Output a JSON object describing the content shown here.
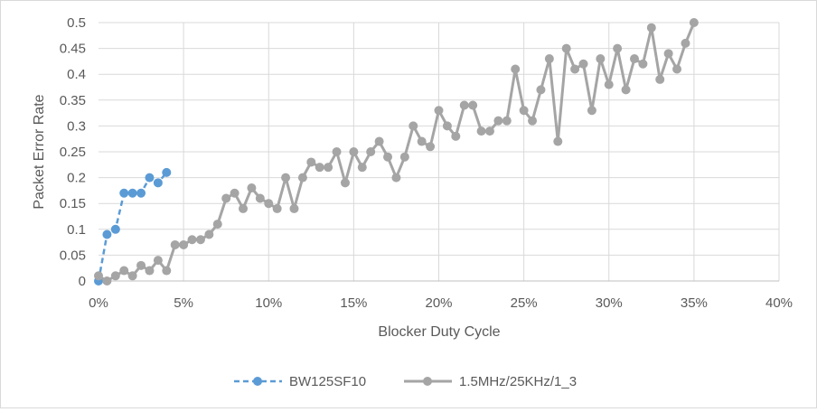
{
  "chart_data": {
    "type": "line",
    "title": "",
    "xlabel": "Blocker Duty Cycle",
    "ylabel": "Packet Error Rate",
    "xlim": [
      0,
      0.4
    ],
    "ylim": [
      0,
      0.5
    ],
    "x_ticks": [
      0,
      0.05,
      0.1,
      0.15,
      0.2,
      0.25,
      0.3,
      0.35,
      0.4
    ],
    "x_tick_labels": [
      "0%",
      "5%",
      "10%",
      "15%",
      "20%",
      "25%",
      "30%",
      "35%",
      "40%"
    ],
    "y_ticks": [
      0,
      0.05,
      0.1,
      0.15,
      0.2,
      0.25,
      0.3,
      0.35,
      0.4,
      0.45,
      0.5
    ],
    "y_tick_labels": [
      "0",
      "0.05",
      "0.1",
      "0.15",
      "0.2",
      "0.25",
      "0.3",
      "0.35",
      "0.4",
      "0.45",
      "0.5"
    ],
    "grid": true,
    "legend_position": "bottom",
    "series": [
      {
        "name": "BW125SF10",
        "color": "#5b9bd5",
        "line_style": "dashed",
        "x": [
          0,
          0.005,
          0.01,
          0.015,
          0.02,
          0.025,
          0.03,
          0.035,
          0.04
        ],
        "y": [
          0,
          0.09,
          0.1,
          0.17,
          0.17,
          0.17,
          0.2,
          0.19,
          0.21
        ]
      },
      {
        "name": "1.5MHz/25KHz/1_3",
        "color": "#a5a5a5",
        "line_style": "solid",
        "x": [
          0,
          0.005,
          0.01,
          0.015,
          0.02,
          0.025,
          0.03,
          0.035,
          0.04,
          0.045,
          0.05,
          0.055,
          0.06,
          0.065,
          0.07,
          0.075,
          0.08,
          0.085,
          0.09,
          0.095,
          0.1,
          0.105,
          0.11,
          0.115,
          0.12,
          0.125,
          0.13,
          0.135,
          0.14,
          0.145,
          0.15,
          0.155,
          0.16,
          0.165,
          0.17,
          0.175,
          0.18,
          0.185,
          0.19,
          0.195,
          0.2,
          0.205,
          0.21,
          0.215,
          0.22,
          0.225,
          0.23,
          0.235,
          0.24,
          0.245,
          0.25,
          0.255,
          0.26,
          0.265,
          0.27,
          0.275,
          0.28,
          0.285,
          0.29,
          0.295,
          0.3,
          0.305,
          0.31,
          0.315,
          0.32,
          0.325,
          0.33,
          0.335,
          0.34,
          0.345,
          0.35
        ],
        "y": [
          0.01,
          0,
          0.01,
          0.02,
          0.01,
          0.03,
          0.02,
          0.04,
          0.02,
          0.07,
          0.07,
          0.08,
          0.08,
          0.09,
          0.11,
          0.16,
          0.17,
          0.14,
          0.18,
          0.16,
          0.15,
          0.14,
          0.2,
          0.14,
          0.2,
          0.23,
          0.22,
          0.22,
          0.25,
          0.19,
          0.25,
          0.22,
          0.25,
          0.27,
          0.24,
          0.2,
          0.24,
          0.3,
          0.27,
          0.26,
          0.33,
          0.3,
          0.28,
          0.34,
          0.34,
          0.29,
          0.29,
          0.31,
          0.31,
          0.41,
          0.33,
          0.31,
          0.37,
          0.43,
          0.27,
          0.45,
          0.41,
          0.42,
          0.33,
          0.43,
          0.38,
          0.45,
          0.37,
          0.43,
          0.42,
          0.49,
          0.39,
          0.44,
          0.41,
          0.46,
          0.5
        ]
      }
    ]
  }
}
